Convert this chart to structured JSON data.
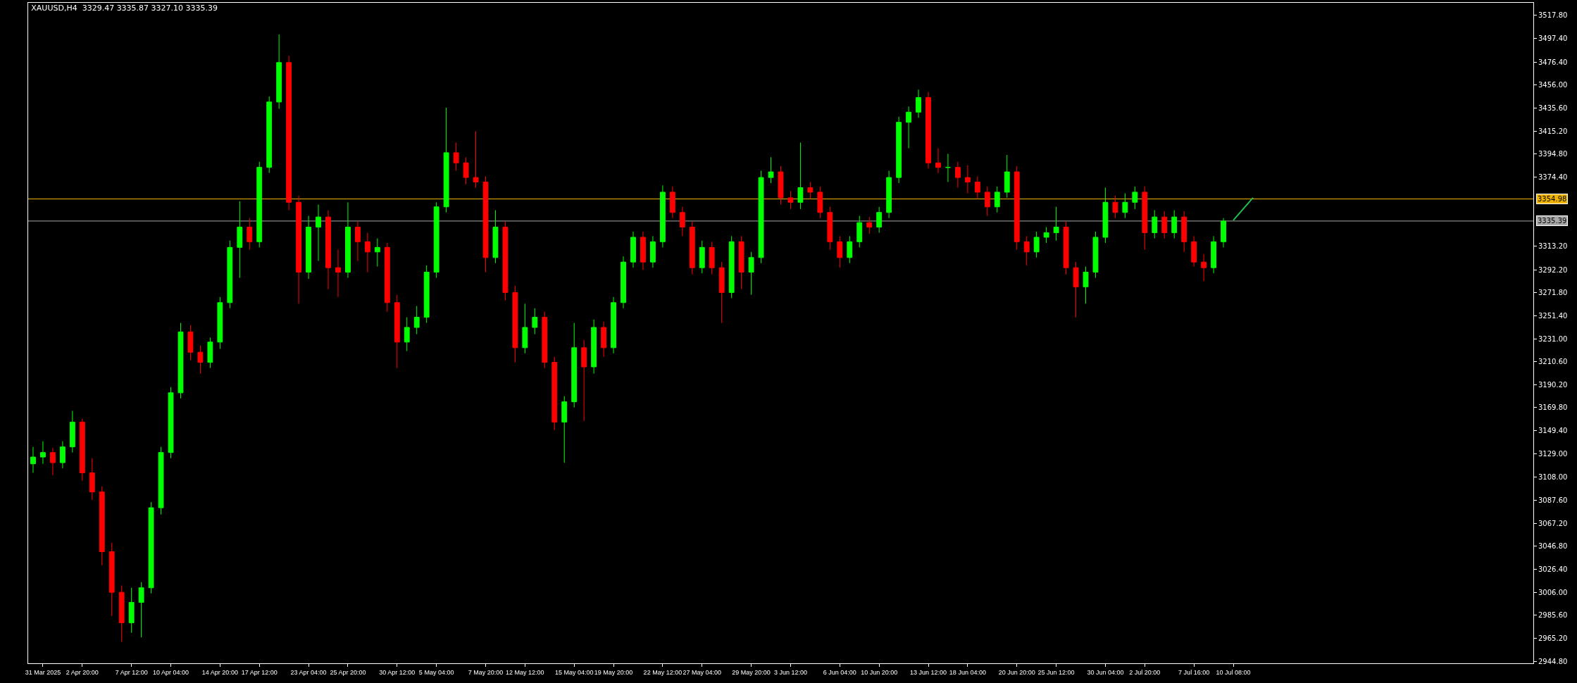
{
  "chart_data": {
    "type": "candlestick",
    "title": "XAUUSD,H4  3329.47 3335.87 3327.10 3335.39",
    "categories": [
      null,
      "31 Mar 2025",
      null,
      null,
      null,
      "2 Apr 20:00",
      null,
      null,
      null,
      null,
      "7 Apr 12:00",
      null,
      null,
      null,
      "10 Apr 04:00",
      null,
      null,
      null,
      null,
      "14 Apr 20:00",
      null,
      null,
      null,
      "17 Apr 12:00",
      null,
      null,
      null,
      null,
      "23 Apr 04:00",
      null,
      null,
      null,
      "25 Apr 20:00",
      null,
      null,
      null,
      null,
      "30 Apr 12:00",
      null,
      null,
      null,
      "5 May 04:00",
      null,
      null,
      null,
      null,
      "7 May 20:00",
      null,
      null,
      null,
      "12 May 12:00",
      null,
      null,
      null,
      null,
      "15 May 04:00",
      null,
      null,
      null,
      "19 May 20:00",
      null,
      null,
      null,
      null,
      "22 May 12:00",
      null,
      null,
      null,
      "27 May 04:00",
      null,
      null,
      null,
      null,
      "29 May 20:00",
      null,
      null,
      null,
      "3 Jun 12:00",
      null,
      null,
      null,
      null,
      "6 Jun 04:00",
      null,
      null,
      null,
      "10 Jun 20:00",
      null,
      null,
      null,
      null,
      "13 Jun 12:00",
      null,
      null,
      null,
      "18 Jun 04:00",
      null,
      null,
      null,
      null,
      "20 Jun 20:00",
      null,
      null,
      null,
      "25 Jun 12:00",
      null,
      null,
      null,
      null,
      "30 Jun 04:00",
      null,
      null,
      null,
      "2 Jul 20:00",
      null,
      null,
      null,
      null,
      "7 Jul 16:00",
      null,
      null,
      null,
      "10 Jul 08:00",
      null,
      null,
      null,
      null,
      null,
      null,
      null,
      null,
      null,
      null,
      null,
      null,
      null,
      null,
      null,
      null,
      null,
      null,
      null,
      null,
      null,
      null,
      null,
      null,
      null,
      null,
      null,
      null,
      null,
      null
    ],
    "ohlc": [
      [
        3120,
        3135,
        3112,
        3126
      ],
      [
        3126,
        3140,
        3120,
        3130
      ],
      [
        3130,
        3134,
        3110,
        3121
      ],
      [
        3121,
        3140,
        3116,
        3135
      ],
      [
        3135,
        3167,
        3130,
        3157
      ],
      [
        3157,
        3160,
        3105,
        3112
      ],
      [
        3112,
        3125,
        3088,
        3095
      ],
      [
        3095,
        3100,
        3030,
        3042
      ],
      [
        3042,
        3050,
        2985,
        3006
      ],
      [
        3006,
        3012,
        2962,
        2979
      ],
      [
        2979,
        3010,
        2970,
        2997
      ],
      [
        2997,
        3015,
        2966,
        3010
      ],
      [
        3010,
        3086,
        3005,
        3081
      ],
      [
        3081,
        3135,
        3075,
        3130
      ],
      [
        3130,
        3188,
        3125,
        3183
      ],
      [
        3183,
        3245,
        3178,
        3237
      ],
      [
        3237,
        3243,
        3212,
        3219
      ],
      [
        3219,
        3225,
        3200,
        3210
      ],
      [
        3210,
        3232,
        3205,
        3228
      ],
      [
        3228,
        3268,
        3222,
        3263
      ],
      [
        3263,
        3318,
        3258,
        3312
      ],
      [
        3312,
        3353,
        3285,
        3330
      ],
      [
        3330,
        3338,
        3310,
        3317
      ],
      [
        3317,
        3388,
        3312,
        3383
      ],
      [
        3383,
        3446,
        3378,
        3441
      ],
      [
        3441,
        3501,
        3435,
        3476
      ],
      [
        3476,
        3482,
        3345,
        3352
      ],
      [
        3352,
        3358,
        3262,
        3290
      ],
      [
        3290,
        3340,
        3284,
        3330
      ],
      [
        3330,
        3350,
        3300,
        3339
      ],
      [
        3339,
        3345,
        3275,
        3294
      ],
      [
        3294,
        3310,
        3268,
        3290
      ],
      [
        3290,
        3352,
        3285,
        3330
      ],
      [
        3330,
        3335,
        3300,
        3317
      ],
      [
        3317,
        3325,
        3290,
        3308
      ],
      [
        3308,
        3320,
        3295,
        3312
      ],
      [
        3312,
        3316,
        3255,
        3263
      ],
      [
        3263,
        3270,
        3205,
        3228
      ],
      [
        3228,
        3250,
        3220,
        3241
      ],
      [
        3241,
        3260,
        3235,
        3250
      ],
      [
        3250,
        3296,
        3245,
        3290
      ],
      [
        3290,
        3352,
        3285,
        3348
      ],
      [
        3348,
        3436,
        3343,
        3396
      ],
      [
        3396,
        3405,
        3380,
        3387
      ],
      [
        3387,
        3392,
        3368,
        3374
      ],
      [
        3374,
        3415,
        3365,
        3370
      ],
      [
        3370,
        3375,
        3290,
        3303
      ],
      [
        3303,
        3345,
        3298,
        3330
      ],
      [
        3330,
        3335,
        3265,
        3272
      ],
      [
        3272,
        3278,
        3210,
        3223
      ],
      [
        3223,
        3262,
        3218,
        3241
      ],
      [
        3241,
        3258,
        3235,
        3250
      ],
      [
        3250,
        3255,
        3205,
        3210
      ],
      [
        3210,
        3215,
        3150,
        3157
      ],
      [
        3157,
        3180,
        3121,
        3175
      ],
      [
        3175,
        3245,
        3170,
        3223
      ],
      [
        3223,
        3230,
        3158,
        3206
      ],
      [
        3206,
        3248,
        3200,
        3241
      ],
      [
        3241,
        3246,
        3215,
        3223
      ],
      [
        3223,
        3268,
        3218,
        3263
      ],
      [
        3263,
        3304,
        3258,
        3299
      ],
      [
        3299,
        3326,
        3294,
        3321
      ],
      [
        3321,
        3326,
        3292,
        3299
      ],
      [
        3299,
        3322,
        3294,
        3317
      ],
      [
        3317,
        3367,
        3312,
        3361
      ],
      [
        3361,
        3366,
        3338,
        3343
      ],
      [
        3343,
        3348,
        3322,
        3330
      ],
      [
        3330,
        3335,
        3288,
        3294
      ],
      [
        3294,
        3318,
        3289,
        3312
      ],
      [
        3312,
        3317,
        3288,
        3294
      ],
      [
        3294,
        3299,
        3245,
        3272
      ],
      [
        3272,
        3322,
        3267,
        3317
      ],
      [
        3317,
        3322,
        3275,
        3290
      ],
      [
        3290,
        3308,
        3270,
        3303
      ],
      [
        3303,
        3380,
        3298,
        3374
      ],
      [
        3374,
        3392,
        3369,
        3379
      ],
      [
        3379,
        3384,
        3350,
        3356
      ],
      [
        3356,
        3362,
        3346,
        3352
      ],
      [
        3352,
        3405,
        3346,
        3365
      ],
      [
        3365,
        3370,
        3355,
        3361
      ],
      [
        3361,
        3366,
        3338,
        3343
      ],
      [
        3343,
        3348,
        3310,
        3317
      ],
      [
        3317,
        3322,
        3294,
        3303
      ],
      [
        3303,
        3322,
        3298,
        3317
      ],
      [
        3317,
        3340,
        3312,
        3334
      ],
      [
        3334,
        3339,
        3324,
        3330
      ],
      [
        3330,
        3348,
        3325,
        3343
      ],
      [
        3343,
        3380,
        3338,
        3374
      ],
      [
        3374,
        3428,
        3369,
        3423
      ],
      [
        3423,
        3437,
        3400,
        3432
      ],
      [
        3432,
        3452,
        3427,
        3445
      ],
      [
        3445,
        3450,
        3382,
        3387
      ],
      [
        3387,
        3400,
        3378,
        3383
      ],
      [
        3383,
        3395,
        3370,
        3383
      ],
      [
        3383,
        3388,
        3365,
        3374
      ],
      [
        3374,
        3385,
        3360,
        3370
      ],
      [
        3370,
        3375,
        3355,
        3361
      ],
      [
        3361,
        3366,
        3340,
        3348
      ],
      [
        3348,
        3366,
        3343,
        3361
      ],
      [
        3361,
        3394,
        3356,
        3379
      ],
      [
        3379,
        3384,
        3310,
        3317
      ],
      [
        3317,
        3322,
        3296,
        3308
      ],
      [
        3308,
        3326,
        3303,
        3321
      ],
      [
        3321,
        3330,
        3316,
        3325
      ],
      [
        3325,
        3348,
        3318,
        3330
      ],
      [
        3330,
        3335,
        3288,
        3294
      ],
      [
        3294,
        3299,
        3250,
        3277
      ],
      [
        3277,
        3295,
        3262,
        3290
      ],
      [
        3290,
        3326,
        3285,
        3321
      ],
      [
        3321,
        3365,
        3316,
        3352
      ],
      [
        3352,
        3358,
        3338,
        3343
      ],
      [
        3343,
        3360,
        3338,
        3352
      ],
      [
        3352,
        3366,
        3346,
        3361
      ],
      [
        3361,
        3366,
        3310,
        3325
      ],
      [
        3325,
        3345,
        3320,
        3339
      ],
      [
        3339,
        3344,
        3320,
        3325
      ],
      [
        3325,
        3345,
        3320,
        3339
      ],
      [
        3339,
        3344,
        3308,
        3317
      ],
      [
        3317,
        3322,
        3295,
        3299
      ],
      [
        3299,
        3306,
        3282,
        3294
      ],
      [
        3294,
        3322,
        3289,
        3317
      ],
      [
        3317,
        3338,
        3312,
        3335.39
      ],
      null,
      null,
      null,
      null,
      null,
      null,
      null,
      null,
      null,
      null,
      null,
      null,
      null,
      null,
      null,
      null,
      null,
      null,
      null,
      null,
      null,
      null,
      null,
      null,
      null,
      null,
      null,
      null,
      null,
      null,
      null
    ],
    "colors": [
      "#00ff00",
      "#00ff00",
      "#ff0000",
      "#00ff00",
      "#00ff00",
      "#ff0000",
      "#ff0000",
      "#ff0000",
      "#ff0000",
      "#ff0000",
      "#00ff00",
      "#00ff00",
      "#00ff00",
      "#00ff00",
      "#00ff00",
      "#00ff00",
      "#ff0000",
      "#ff0000",
      "#00ff00",
      "#00ff00",
      "#00ff00",
      "#00ff00",
      "#ff0000",
      "#00ff00",
      "#00ff00",
      "#00ff00",
      "#ff0000",
      "#ff0000",
      "#00ff00",
      "#00ff00",
      "#ff0000",
      "#ff0000",
      "#00ff00",
      "#ff0000",
      "#ff0000",
      "#00ff00",
      "#ff0000",
      "#ff0000",
      "#00ff00",
      "#00ff00",
      "#00ff00",
      "#00ff00",
      "#00ff00",
      "#ff0000",
      "#ff0000",
      "#ff0000",
      "#ff0000",
      "#00ff00",
      "#ff0000",
      "#ff0000",
      "#00ff00",
      "#00ff00",
      "#ff0000",
      "#ff0000",
      "#00ff00",
      "#00ff00",
      "#ff0000",
      "#00ff00",
      "#ff0000",
      "#00ff00",
      "#00ff00",
      "#00ff00",
      "#ff0000",
      "#00ff00",
      "#00ff00",
      "#ff0000",
      "#ff0000",
      "#ff0000",
      "#00ff00",
      "#ff0000",
      "#ff0000",
      "#00ff00",
      "#ff0000",
      "#00ff00",
      "#00ff00",
      "#00ff00",
      "#ff0000",
      "#ff0000",
      "#00ff00",
      "#ff0000",
      "#ff0000",
      "#ff0000",
      "#ff0000",
      "#00ff00",
      "#00ff00",
      "#ff0000",
      "#00ff00",
      "#00ff00",
      "#00ff00",
      "#00ff00",
      "#00ff00",
      "#ff0000",
      "#ff0000",
      "#00ff00",
      "#ff0000",
      "#ff0000",
      "#ff0000",
      "#ff0000",
      "#00ff00",
      "#00ff00",
      "#ff0000",
      "#ff0000",
      "#00ff00",
      "#00ff00",
      "#00ff00",
      "#ff0000",
      "#ff0000",
      "#00ff00",
      "#00ff00",
      "#00ff00",
      "#ff0000",
      "#00ff00",
      "#00ff00",
      "#ff0000",
      "#00ff00",
      "#ff0000",
      "#00ff00",
      "#ff0000",
      "#ff0000",
      "#ff0000",
      "#00ff00",
      "#00ff00",
      null,
      null,
      null,
      null,
      null,
      null,
      null,
      null,
      null,
      null,
      null,
      null,
      null,
      null,
      null,
      null,
      null,
      null,
      null,
      null,
      null,
      null,
      null,
      null,
      null,
      null,
      null,
      null,
      null,
      null,
      null
    ],
    "series": [
      {
        "type": "line",
        "color": "#1fbf4f",
        "values": [
          null,
          null,
          null,
          null,
          null,
          null,
          null,
          null,
          null,
          null,
          null,
          null,
          null,
          null,
          null,
          null,
          null,
          null,
          null,
          null,
          null,
          null,
          null,
          null,
          null,
          null,
          null,
          null,
          null,
          null,
          null,
          null,
          null,
          null,
          null,
          null,
          null,
          null,
          null,
          null,
          null,
          null,
          null,
          null,
          null,
          null,
          null,
          null,
          null,
          null,
          null,
          null,
          null,
          null,
          null,
          null,
          null,
          null,
          null,
          null,
          null,
          null,
          null,
          null,
          null,
          null,
          null,
          null,
          null,
          null,
          null,
          null,
          null,
          null,
          null,
          null,
          null,
          null,
          null,
          null,
          null,
          null,
          null,
          null,
          null,
          null,
          null,
          null,
          null,
          null,
          null,
          null,
          null,
          null,
          null,
          null,
          null,
          null,
          null,
          null,
          null,
          null,
          null,
          null,
          null,
          null,
          null,
          null,
          null,
          null,
          null,
          null,
          null,
          null,
          null,
          null,
          null,
          null,
          null,
          null,
          null,
          null,
          3336,
          3346,
          3356,
          null,
          null,
          null,
          null,
          null,
          null,
          null,
          null,
          null,
          null,
          null,
          null,
          null,
          null,
          null,
          null,
          null,
          null,
          null,
          null,
          null,
          null,
          null,
          null,
          null,
          null,
          null,
          null
        ]
      }
    ],
    "ylim": [
      2943,
      3529
    ],
    "yticks": [
      {
        "value": 3517.8,
        "label": "3517.80"
      },
      {
        "value": 3497.4,
        "label": "3497.40"
      },
      {
        "value": 3476.4,
        "label": "3476.40"
      },
      {
        "value": 3456,
        "label": "3456.00"
      },
      {
        "value": 3435.6,
        "label": "3435.60"
      },
      {
        "value": 3415.2,
        "label": "3415.20"
      },
      {
        "value": 3394.8,
        "label": "3394.80"
      },
      {
        "value": 3374.4,
        "label": "3374.40"
      },
      {
        "value": 3313.2,
        "label": "3313.20"
      },
      {
        "value": 3292.2,
        "label": "3292.20"
      },
      {
        "value": 3271.8,
        "label": "3271.80"
      },
      {
        "value": 3251.4,
        "label": "3251.40"
      },
      {
        "value": 3231,
        "label": "3231.00"
      },
      {
        "value": 3210.6,
        "label": "3210.60"
      },
      {
        "value": 3190.2,
        "label": "3190.20"
      },
      {
        "value": 3169.8,
        "label": "3169.80"
      },
      {
        "value": 3149.4,
        "label": "3149.40"
      },
      {
        "value": 3129,
        "label": "3129.00"
      },
      {
        "value": 3108,
        "label": "3108.00"
      },
      {
        "value": 3087.6,
        "label": "3087.60"
      },
      {
        "value": 3067.2,
        "label": "3067.20"
      },
      {
        "value": 3046.8,
        "label": "3046.80"
      },
      {
        "value": 3026.4,
        "label": "3026.40"
      },
      {
        "value": 3006,
        "label": "3006.00"
      },
      {
        "value": 2985.6,
        "label": "2985.60"
      },
      {
        "value": 2965.2,
        "label": "2965.20"
      },
      {
        "value": 2944.8,
        "label": "2944.80"
      }
    ],
    "ref_lines": [
      {
        "axis": "y",
        "value": 3354.98,
        "label": "3354.98",
        "color": "#f0b400"
      },
      {
        "axis": "y",
        "value": 3335.39,
        "label": "3335.39",
        "color": "#a8a8a8"
      }
    ],
    "grid": false
  }
}
